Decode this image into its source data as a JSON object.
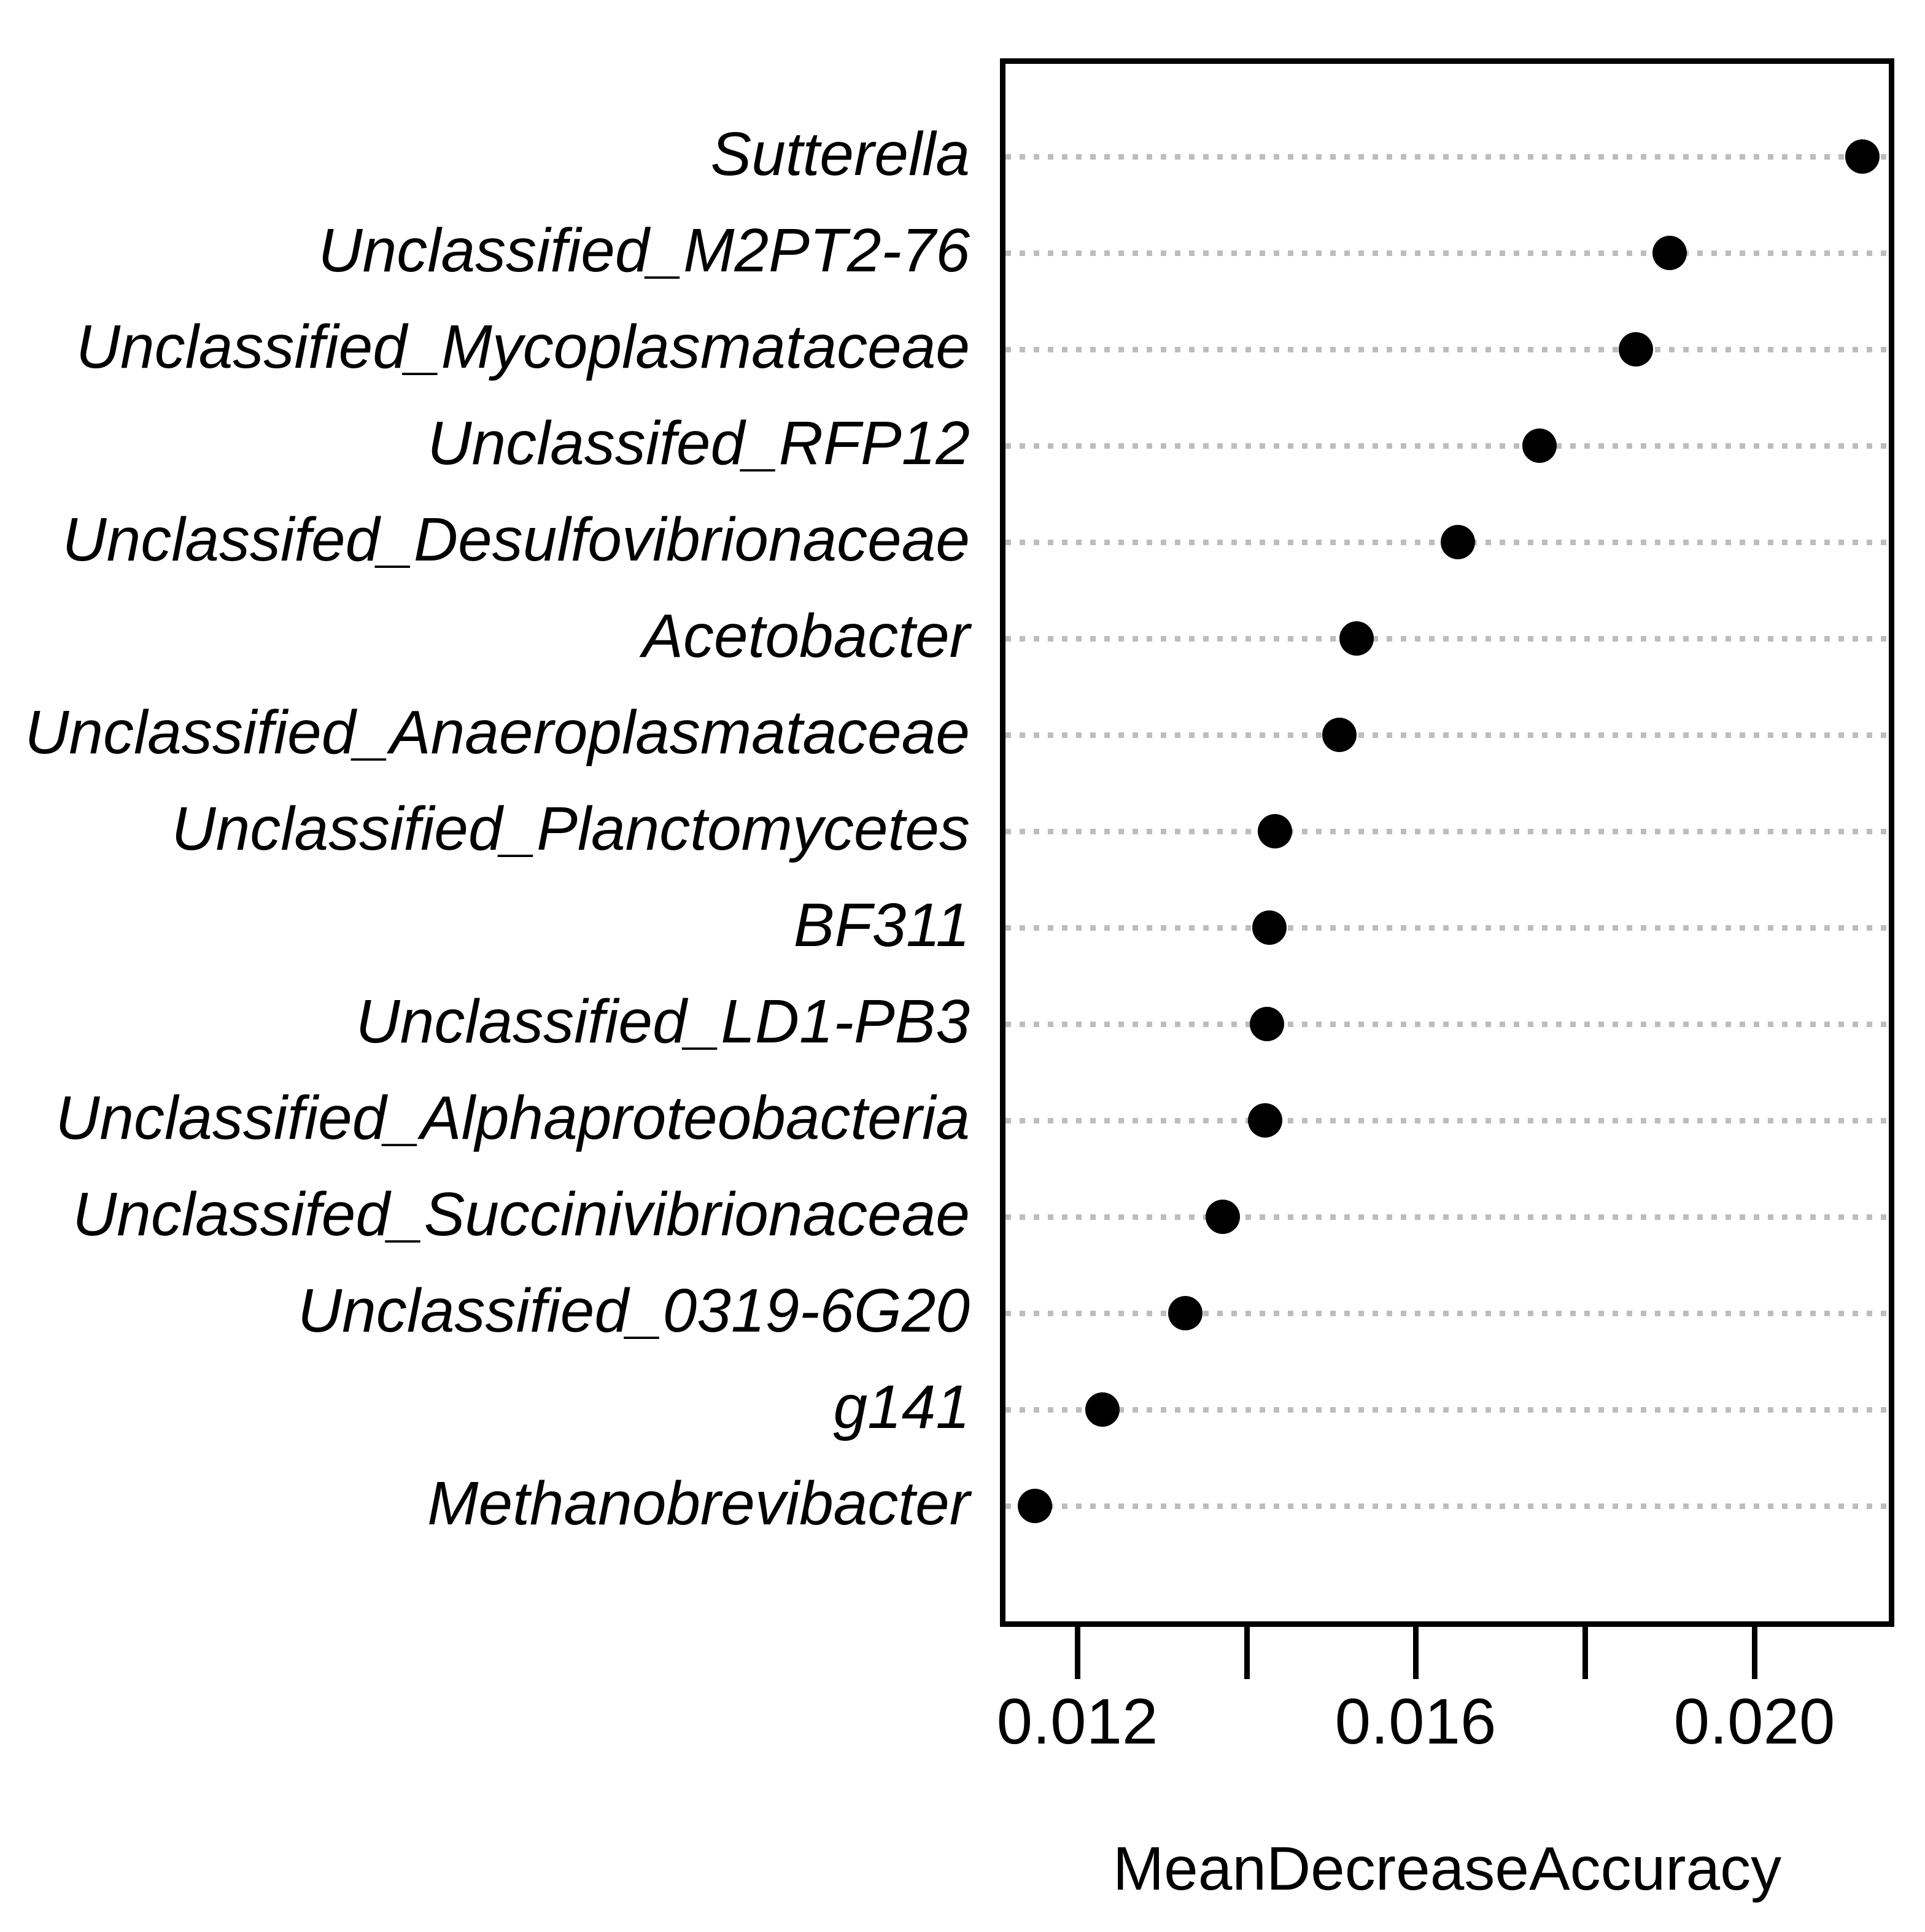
{
  "chart_data": {
    "type": "scatter",
    "variant": "dot-plot-variable-importance",
    "title": "",
    "xlabel": "MeanDecreaseAccuracy",
    "ylabel": "",
    "categories": [
      "Sutterella",
      "Unclassified_M2PT2-76",
      "Unclassified_Mycoplasmataceae",
      "Unclassifed_RFP12",
      "Unclassifed_Desulfovibrionaceae",
      "Acetobacter",
      "Unclassified_Anaeroplasmataceae",
      "Unclassified_Planctomycetes",
      "BF311",
      "Unclassified_LD1-PB3",
      "Unclassified_Alphaproteobacteria",
      "Unclassifed_Succinivibrionaceae",
      "Unclassified_0319-6G20",
      "g141",
      "Methanobrevibacter"
    ],
    "values": [
      0.02127,
      0.019,
      0.0186,
      0.01746,
      0.0165,
      0.0153,
      0.0151,
      0.01434,
      0.01427,
      0.01424,
      0.01422,
      0.01372,
      0.01328,
      0.0123,
      0.0115
    ],
    "xlim": [
      0.01109,
      0.02165
    ],
    "xticks": [
      0.012,
      0.014,
      0.016,
      0.018,
      0.02
    ],
    "xtick_labels": [
      "0.012",
      "",
      "0.016",
      "",
      "0.020"
    ],
    "grid": "horizontal dotted line per category",
    "legend": "none",
    "colors": {
      "dot": "#000000",
      "grid_dots": "#bdbdbd",
      "frame": "#000000",
      "text": "#000000",
      "background": "#ffffff"
    }
  }
}
